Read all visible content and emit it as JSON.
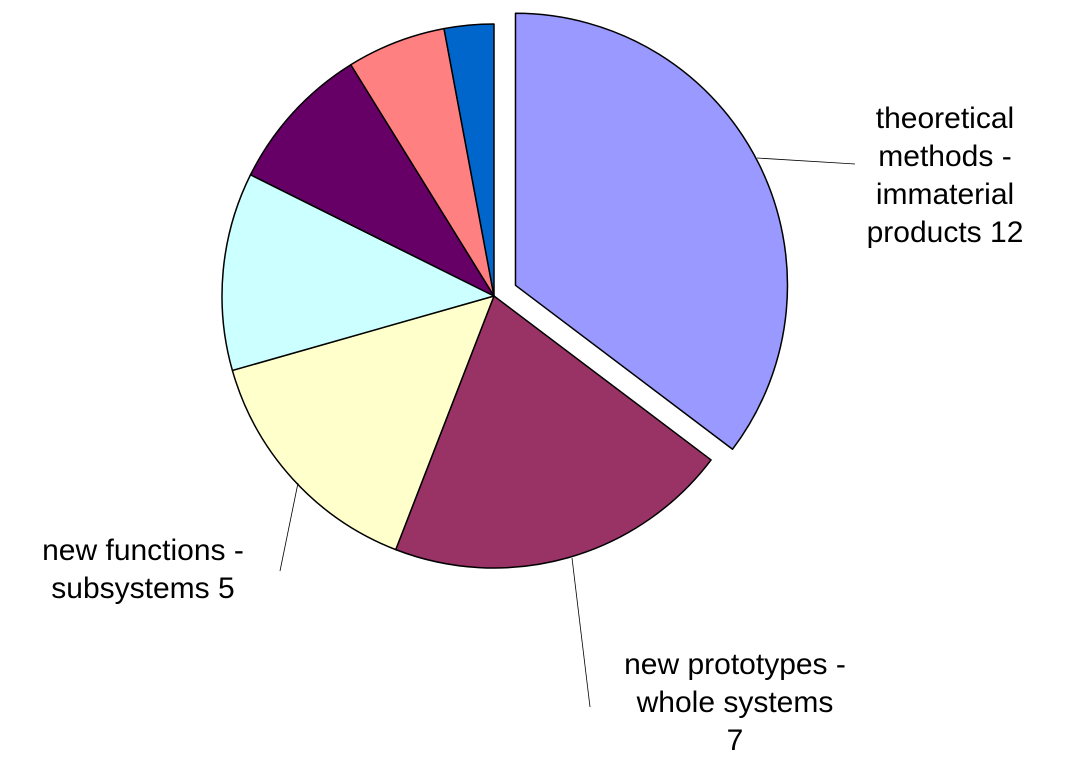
{
  "chart_data": {
    "type": "pie",
    "title": "",
    "legend": "none",
    "slices": [
      {
        "label": [
          "theoretical",
          "methods -",
          "immaterial",
          "products 12"
        ],
        "value": 12,
        "color": "#9999ff",
        "exploded": true
      },
      {
        "label": [
          "new prototypes -",
          "whole systems",
          "7"
        ],
        "value": 7,
        "color": "#993366",
        "exploded": false
      },
      {
        "label": [
          "new functions -",
          "subsystems 5"
        ],
        "value": 5,
        "color": "#ffffcc",
        "exploded": false
      },
      {
        "label": [],
        "value": 4,
        "color": "#ccffff",
        "exploded": false
      },
      {
        "label": [],
        "value": 3,
        "color": "#660066",
        "exploded": false
      },
      {
        "label": [],
        "value": 2,
        "color": "#ff8080",
        "exploded": false
      },
      {
        "label": [],
        "value": 1,
        "color": "#0066cc",
        "exploded": false
      }
    ]
  }
}
